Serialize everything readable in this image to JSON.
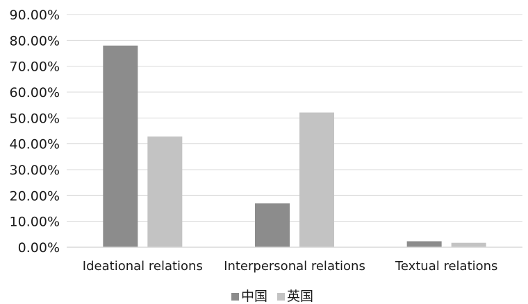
{
  "chart_data": {
    "type": "bar",
    "categories": [
      "Ideational relations",
      "Interpersonal relations",
      "Textual relations"
    ],
    "series": [
      {
        "name": "中国",
        "values": [
          78.0,
          17.0,
          2.3
        ],
        "color": "#8c8c8c"
      },
      {
        "name": "英国",
        "values": [
          42.8,
          52.1,
          1.7
        ],
        "color": "#c3c3c3"
      }
    ],
    "ylim": [
      0,
      90
    ],
    "yticks": [
      0,
      10,
      20,
      30,
      40,
      50,
      60,
      70,
      80,
      90
    ],
    "ytick_labels": [
      "0.00%",
      "10.00%",
      "20.00%",
      "30.00%",
      "40.00%",
      "50.00%",
      "60.00%",
      "70.00%",
      "80.00%",
      "90.00%"
    ],
    "grid": true,
    "legend_position": "bottom",
    "title": "",
    "xlabel": "",
    "ylabel": ""
  }
}
